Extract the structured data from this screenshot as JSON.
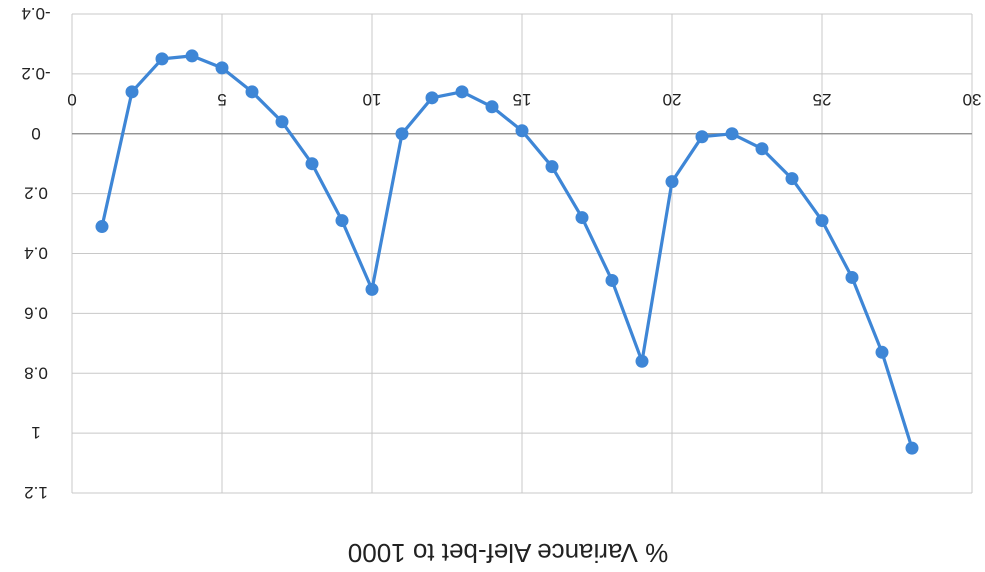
{
  "chart_data": {
    "type": "line",
    "title": "",
    "xlabel": "% Variance Alef-bet to 1000",
    "ylabel": "",
    "y_axis_inverted": true,
    "xlim": [
      0,
      30
    ],
    "ylim": [
      -0.4,
      1.2
    ],
    "x_ticks": [
      "0",
      "5",
      "10",
      "15",
      "20",
      "25",
      "30"
    ],
    "y_ticks": [
      "-0.4",
      "-0.2",
      "0",
      "0.2",
      "0.4",
      "0.6",
      "0.8",
      "1",
      "1.2"
    ],
    "grid": true,
    "legend": "none",
    "series": [
      {
        "color": "#3e86d6",
        "points": [
          {
            "x": 1.0,
            "y": 0.31
          },
          {
            "x": 2.0,
            "y": -0.14
          },
          {
            "x": 3.0,
            "y": -0.25
          },
          {
            "x": 4.0,
            "y": -0.26
          },
          {
            "x": 5.0,
            "y": -0.22
          },
          {
            "x": 6.0,
            "y": -0.14
          },
          {
            "x": 7.0,
            "y": -0.04
          },
          {
            "x": 8.0,
            "y": 0.1
          },
          {
            "x": 9.0,
            "y": 0.29
          },
          {
            "x": 10.0,
            "y": 0.52
          },
          {
            "x": 11.0,
            "y": 0.0
          },
          {
            "x": 12.0,
            "y": -0.12
          },
          {
            "x": 13.0,
            "y": -0.14
          },
          {
            "x": 14.0,
            "y": -0.09
          },
          {
            "x": 15.0,
            "y": -0.01
          },
          {
            "x": 16.0,
            "y": 0.11
          },
          {
            "x": 17.0,
            "y": 0.28
          },
          {
            "x": 18.0,
            "y": 0.49
          },
          {
            "x": 19.0,
            "y": 0.76
          },
          {
            "x": 20.0,
            "y": 0.16
          },
          {
            "x": 21.0,
            "y": 0.01
          },
          {
            "x": 22.0,
            "y": 0.0
          },
          {
            "x": 23.0,
            "y": 0.05
          },
          {
            "x": 24.0,
            "y": 0.15
          },
          {
            "x": 25.0,
            "y": 0.29
          },
          {
            "x": 26.0,
            "y": 0.48
          },
          {
            "x": 27.0,
            "y": 0.73
          },
          {
            "x": 28.0,
            "y": 1.05
          }
        ]
      }
    ]
  }
}
